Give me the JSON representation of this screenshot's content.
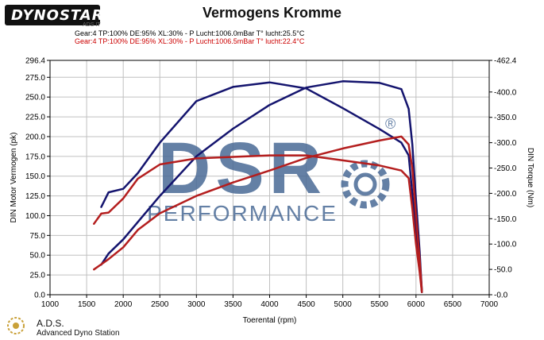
{
  "header": {
    "logo_text": "DYNOSTAR",
    "logo_sub": "ADS IT",
    "title": "Vermogens Kromme",
    "run1": "Gear:4 TP:100% DE:95% XL:30%   - P Lucht:1006.0mBar T° lucht:25.5°C",
    "run2": "Gear:4 TP:100% DE:95% XL:30%   - P Lucht:1006.5mBar T° lucht:22.4°C"
  },
  "footer": {
    "name": "A.D.S.",
    "sub": "Advanced Dyno Station"
  },
  "watermark": {
    "big": "DSR",
    "small": "PERFORMANCE",
    "mark": "®"
  },
  "colors": {
    "run1": "#14146e",
    "run2": "#b41e1e",
    "grid": "#c0c0c0",
    "watermark": "#4a6a96"
  },
  "chart_data": {
    "type": "line",
    "title": "Vermogens Kromme",
    "xlabel": "Toerental (rpm)",
    "ylabel_left": "DIN Motor Vermogen (pk)",
    "ylabel_right": "DIN Torque (Nm)",
    "xlim": [
      1000,
      7000
    ],
    "ylim_left": [
      0,
      296.4
    ],
    "ylim_right": [
      0,
      462.4
    ],
    "x_ticks": [
      "1000",
      "1500",
      "2000",
      "2500",
      "3000",
      "3500",
      "4000",
      "4500",
      "5000",
      "5500",
      "6000",
      "6500",
      "7000"
    ],
    "y_ticks_left": [
      "296.4",
      "275.0",
      "250.0",
      "225.0",
      "200.0",
      "175.0",
      "150.0",
      "125.0",
      "100.0",
      "75.0",
      "50.0",
      "25.0",
      "0.0"
    ],
    "y_ticks_right": [
      "-462.4",
      "-400.0",
      "-350.0",
      "-300.0",
      "-250.0",
      "-200.0",
      "-150.0",
      "-100.0",
      "-50.0",
      "-0.0"
    ],
    "grid": true,
    "series": [
      {
        "axis": "left",
        "run": 1,
        "x": [
          1700,
          1800,
          2000,
          2200,
          2500,
          3000,
          3500,
          4000,
          4500,
          5000,
          5500,
          5800,
          5900,
          5950,
          6000,
          6050,
          6080
        ],
        "y": [
          38,
          52,
          70,
          92,
          125,
          175,
          210,
          240,
          262,
          270,
          268,
          260,
          235,
          190,
          120,
          55,
          5
        ]
      },
      {
        "axis": "right",
        "run": 1,
        "x": [
          1700,
          1800,
          2000,
          2200,
          2500,
          3000,
          3500,
          4000,
          4500,
          5000,
          5500,
          5800,
          5900,
          5950,
          6000,
          6050,
          6080
        ],
        "y": [
          173,
          202,
          209,
          240,
          300,
          382,
          410,
          419,
          407,
          368,
          327,
          300,
          275,
          200,
          120,
          60,
          5
        ]
      },
      {
        "axis": "left",
        "run": 2,
        "x": [
          1600,
          1800,
          2000,
          2200,
          2500,
          3000,
          3500,
          4000,
          4500,
          5000,
          5500,
          5800,
          5900,
          5950,
          6000,
          6050,
          6080
        ],
        "y": [
          32,
          45,
          60,
          82,
          103,
          125,
          142,
          157,
          173,
          185,
          195,
          200,
          190,
          160,
          100,
          45,
          5
        ]
      },
      {
        "axis": "right",
        "run": 2,
        "x": [
          1600,
          1700,
          1800,
          2000,
          2200,
          2500,
          3000,
          3500,
          4000,
          4500,
          5000,
          5500,
          5800,
          5900,
          5950,
          6000,
          6050,
          6080
        ],
        "y": [
          140,
          160,
          162,
          190,
          229,
          257,
          269,
          272,
          275,
          275,
          265,
          255,
          245,
          230,
          170,
          100,
          45,
          5
        ]
      }
    ]
  }
}
